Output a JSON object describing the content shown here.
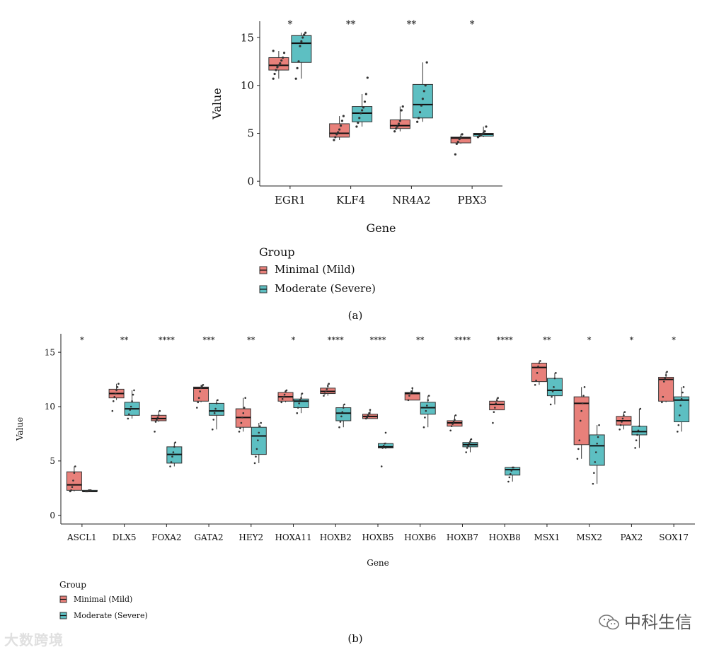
{
  "colors": {
    "minimal": "#e8807a",
    "moderate": "#5dbfc2",
    "stroke": "#333333",
    "axis": "#222222"
  },
  "watermarks": {
    "left": "大数跨境",
    "right": "中科生信"
  },
  "chart_data": [
    {
      "type": "box",
      "panel_label": "(a)",
      "xlabel": "Gene",
      "ylabel": "Value",
      "ylim": [
        -0.5,
        16.7
      ],
      "yticks": [
        0,
        5,
        10,
        15
      ],
      "legend": {
        "title": "Group",
        "position": "bottom",
        "entries": [
          "Minimal (Mild)",
          "Moderate (Severe)"
        ]
      },
      "categories": [
        "EGR1",
        "KLF4",
        "NR4A2",
        "PBX3"
      ],
      "significance": [
        "*",
        "**",
        "**",
        "*"
      ],
      "series": [
        {
          "name": "Minimal (Mild)",
          "boxes": [
            {
              "min": 10.7,
              "q1": 11.6,
              "median": 12.1,
              "q3": 12.9,
              "max": 13.6,
              "points": [
                10.7,
                11.2,
                11.6,
                11.9,
                12.1,
                12.3,
                12.6,
                12.9,
                13.4,
                13.6
              ]
            },
            {
              "min": 4.3,
              "q1": 4.6,
              "median": 5.0,
              "q3": 6.0,
              "max": 6.8,
              "points": [
                4.3,
                4.6,
                4.9,
                5.1,
                5.4,
                5.8,
                6.3,
                6.8
              ]
            },
            {
              "min": 5.2,
              "q1": 5.5,
              "median": 5.8,
              "q3": 6.4,
              "max": 7.8,
              "points": [
                5.2,
                5.5,
                5.7,
                6.0,
                6.3,
                7.4,
                7.8
              ]
            },
            {
              "min": 3.9,
              "q1": 4.0,
              "median": 4.5,
              "q3": 4.6,
              "max": 4.9,
              "points": [
                2.8,
                3.9,
                4.1,
                4.4,
                4.6,
                4.9
              ]
            }
          ]
        },
        {
          "name": "Moderate (Severe)",
          "boxes": [
            {
              "min": 10.7,
              "q1": 12.4,
              "median": 14.4,
              "q3": 15.2,
              "max": 15.5,
              "points": [
                10.7,
                11.8,
                12.5,
                14.1,
                14.6,
                15.0,
                15.3,
                15.5
              ]
            },
            {
              "min": 5.7,
              "q1": 6.2,
              "median": 7.1,
              "q3": 7.8,
              "max": 9.1,
              "points": [
                5.7,
                6.1,
                6.6,
                7.1,
                7.4,
                7.7,
                8.3,
                9.1,
                10.8
              ]
            },
            {
              "min": 6.2,
              "q1": 6.6,
              "median": 8.0,
              "q3": 10.1,
              "max": 12.4,
              "points": [
                6.2,
                6.6,
                7.2,
                7.9,
                8.6,
                9.4,
                10.0,
                12.4
              ]
            },
            {
              "min": 4.6,
              "q1": 4.7,
              "median": 4.9,
              "q3": 5.0,
              "max": 5.7,
              "points": [
                4.6,
                4.7,
                4.8,
                4.9,
                5.0,
                5.2,
                5.7
              ]
            }
          ]
        }
      ]
    },
    {
      "type": "box",
      "panel_label": "(b)",
      "xlabel": "Gene",
      "ylabel": "Value",
      "ylim": [
        -0.8,
        16.7
      ],
      "yticks": [
        0,
        5,
        10,
        15
      ],
      "legend": {
        "title": "Group",
        "position": "bottom-left",
        "entries": [
          "Minimal (Mild)",
          "Moderate (Severe)"
        ]
      },
      "categories": [
        "ASCL1",
        "DLX5",
        "FOXA2",
        "GATA2",
        "HEY2",
        "HOXA11",
        "HOXB2",
        "HOXB5",
        "HOXB6",
        "HOXB7",
        "HOXB8",
        "MSX1",
        "MSX2",
        "PAX2",
        "SOX17"
      ],
      "significance": [
        "*",
        "**",
        "****",
        "***",
        "**",
        "*",
        "****",
        "****",
        "**",
        "****",
        "****",
        "**",
        "*",
        "*",
        "*"
      ],
      "series": [
        {
          "name": "Minimal (Mild)",
          "boxes": [
            {
              "min": 2.2,
              "q1": 2.3,
              "median": 2.8,
              "q3": 4.0,
              "max": 4.5,
              "points": [
                2.2,
                2.3,
                2.6,
                3.2,
                3.9,
                4.5
              ]
            },
            {
              "min": 10.6,
              "q1": 10.8,
              "median": 11.2,
              "q3": 11.6,
              "max": 12.1,
              "points": [
                9.6,
                10.5,
                10.9,
                11.2,
                11.5,
                11.8,
                12.1
              ]
            },
            {
              "min": 8.6,
              "q1": 8.7,
              "median": 8.9,
              "q3": 9.2,
              "max": 9.6,
              "points": [
                7.7,
                8.6,
                8.8,
                9.0,
                9.2,
                9.6
              ]
            },
            {
              "min": 10.4,
              "q1": 10.5,
              "median": 11.7,
              "q3": 11.8,
              "max": 12.0,
              "points": [
                9.9,
                10.4,
                10.8,
                11.4,
                11.7,
                11.9,
                12.0
              ]
            },
            {
              "min": 7.7,
              "q1": 8.1,
              "median": 9.0,
              "q3": 9.8,
              "max": 10.8,
              "points": [
                7.7,
                8.0,
                8.5,
                9.0,
                9.4,
                9.9,
                10.8
              ]
            },
            {
              "min": 10.4,
              "q1": 10.5,
              "median": 10.9,
              "q3": 11.3,
              "max": 11.5,
              "points": [
                10.4,
                10.7,
                10.9,
                11.1,
                11.4,
                11.5
              ]
            },
            {
              "min": 11.0,
              "q1": 11.2,
              "median": 11.4,
              "q3": 11.7,
              "max": 12.1,
              "points": [
                11.0,
                11.2,
                11.4,
                11.6,
                11.9,
                12.1
              ]
            },
            {
              "min": 8.9,
              "q1": 8.9,
              "median": 9.1,
              "q3": 9.3,
              "max": 9.7,
              "points": [
                8.9,
                9.0,
                9.2,
                9.4,
                9.7
              ]
            },
            {
              "min": 10.6,
              "q1": 10.6,
              "median": 11.2,
              "q3": 11.3,
              "max": 11.7,
              "points": [
                10.6,
                11.0,
                11.2,
                11.4,
                11.7
              ]
            },
            {
              "min": 8.2,
              "q1": 8.2,
              "median": 8.5,
              "q3": 8.7,
              "max": 9.2,
              "points": [
                7.8,
                8.2,
                8.4,
                8.6,
                8.8,
                9.2
              ]
            },
            {
              "min": 9.7,
              "q1": 9.7,
              "median": 10.2,
              "q3": 10.5,
              "max": 10.8,
              "points": [
                8.5,
                9.5,
                9.9,
                10.3,
                10.6,
                10.8
              ]
            },
            {
              "min": 12.0,
              "q1": 12.3,
              "median": 13.6,
              "q3": 14.0,
              "max": 14.2,
              "points": [
                12.0,
                12.4,
                13.1,
                13.7,
                14.0,
                14.2
              ]
            },
            {
              "min": 5.2,
              "q1": 6.5,
              "median": 10.3,
              "q3": 10.9,
              "max": 11.8,
              "points": [
                5.2,
                6.1,
                6.9,
                8.7,
                9.6,
                10.3,
                11.0,
                11.8
              ]
            },
            {
              "min": 7.9,
              "q1": 8.3,
              "median": 8.7,
              "q3": 9.1,
              "max": 9.5,
              "points": [
                7.9,
                8.3,
                8.6,
                8.9,
                9.2,
                9.5
              ]
            },
            {
              "min": 10.4,
              "q1": 10.5,
              "median": 12.5,
              "q3": 12.7,
              "max": 13.2,
              "points": [
                10.4,
                10.9,
                12.3,
                12.6,
                12.9,
                13.2
              ]
            }
          ]
        },
        {
          "name": "Moderate (Severe)",
          "boxes": [
            {
              "min": 2.2,
              "q1": 2.2,
              "median": 2.2,
              "q3": 2.3,
              "max": 2.3,
              "points": [
                2.2,
                2.2,
                2.2,
                2.3,
                2.3,
                2.3
              ]
            },
            {
              "min": 8.9,
              "q1": 9.2,
              "median": 9.8,
              "q3": 10.4,
              "max": 11.5,
              "points": [
                8.9,
                9.3,
                9.7,
                10.0,
                10.5,
                11.1,
                11.5
              ]
            },
            {
              "min": 4.5,
              "q1": 4.8,
              "median": 5.6,
              "q3": 6.3,
              "max": 6.7,
              "points": [
                4.5,
                4.9,
                5.4,
                5.8,
                6.3,
                6.7
              ]
            },
            {
              "min": 7.9,
              "q1": 9.2,
              "median": 9.6,
              "q3": 10.3,
              "max": 10.6,
              "points": [
                7.9,
                8.8,
                9.4,
                9.8,
                10.3,
                10.6
              ]
            },
            {
              "min": 4.8,
              "q1": 5.6,
              "median": 7.3,
              "q3": 8.1,
              "max": 8.5,
              "points": [
                4.8,
                5.4,
                6.1,
                6.9,
                7.6,
                8.2,
                8.5
              ]
            },
            {
              "min": 9.4,
              "q1": 9.9,
              "median": 10.5,
              "q3": 10.7,
              "max": 11.2,
              "points": [
                9.4,
                9.9,
                10.3,
                10.6,
                10.8,
                11.2
              ]
            },
            {
              "min": 8.1,
              "q1": 8.7,
              "median": 9.4,
              "q3": 9.9,
              "max": 10.2,
              "points": [
                8.1,
                8.6,
                9.1,
                9.5,
                9.9,
                10.2
              ]
            },
            {
              "min": 6.1,
              "q1": 6.2,
              "median": 6.3,
              "q3": 6.6,
              "max": 6.7,
              "points": [
                4.5,
                6.2,
                6.4,
                6.6,
                7.6
              ]
            },
            {
              "min": 8.1,
              "q1": 9.3,
              "median": 9.9,
              "q3": 10.4,
              "max": 11.0,
              "points": [
                8.1,
                9.0,
                9.6,
                10.1,
                10.6,
                11.0
              ]
            },
            {
              "min": 5.8,
              "q1": 6.3,
              "median": 6.5,
              "q3": 6.7,
              "max": 7.0,
              "points": [
                5.8,
                6.2,
                6.4,
                6.6,
                6.8,
                7.0
              ]
            },
            {
              "min": 3.1,
              "q1": 3.7,
              "median": 4.2,
              "q3": 4.4,
              "max": 4.4,
              "points": [
                3.1,
                3.5,
                3.8,
                4.1,
                4.4,
                4.4
              ]
            },
            {
              "min": 10.2,
              "q1": 11.0,
              "median": 11.5,
              "q3": 12.6,
              "max": 13.1,
              "points": [
                10.2,
                10.9,
                11.4,
                11.8,
                12.6,
                13.1
              ]
            },
            {
              "min": 2.9,
              "q1": 4.6,
              "median": 6.4,
              "q3": 7.4,
              "max": 8.3,
              "points": [
                2.9,
                3.9,
                4.9,
                5.8,
                6.6,
                7.2,
                8.3
              ]
            },
            {
              "min": 6.2,
              "q1": 7.4,
              "median": 7.7,
              "q3": 8.2,
              "max": 9.8,
              "points": [
                6.2,
                6.9,
                7.4,
                7.8,
                8.2,
                9.8
              ]
            },
            {
              "min": 7.7,
              "q1": 8.6,
              "median": 10.6,
              "q3": 10.9,
              "max": 11.8,
              "points": [
                7.7,
                8.3,
                9.2,
                10.1,
                10.7,
                11.3,
                11.8
              ]
            }
          ]
        }
      ]
    }
  ]
}
